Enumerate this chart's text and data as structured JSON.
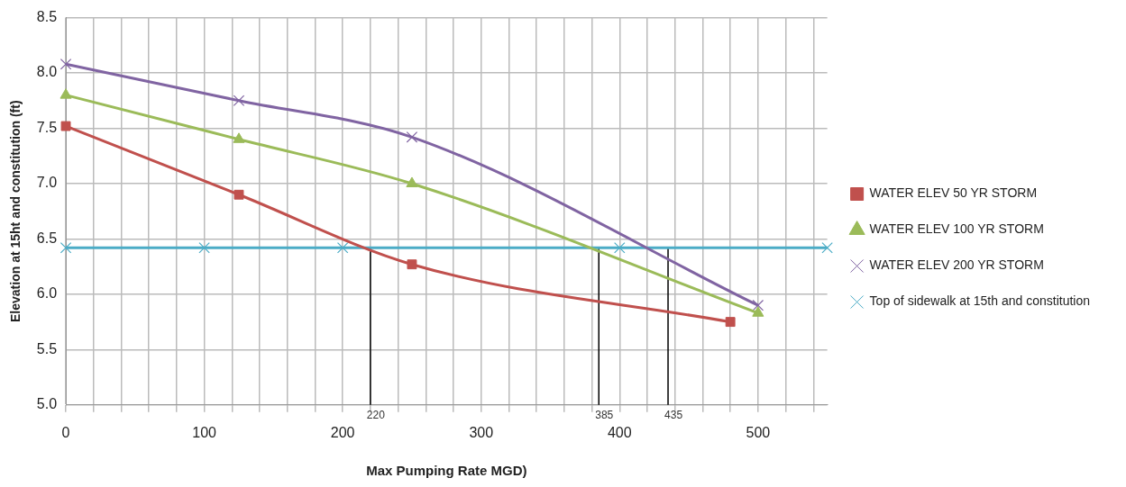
{
  "chart_data": {
    "type": "line",
    "xlabel": "Max Pumping Rate MGD)",
    "ylabel": "Elevation at 15ht and constitution (ft)",
    "xlim": [
      0,
      550
    ],
    "xticks": [
      0,
      {
        "value": 20,
        "label": null
      },
      {
        "value": 40,
        "label": null
      },
      {
        "value": 60,
        "label": null
      },
      {
        "value": 80,
        "label": null
      },
      100,
      {
        "value": 120,
        "label": null
      },
      {
        "value": 140,
        "label": null
      },
      {
        "value": 160,
        "label": null
      },
      {
        "value": 180,
        "label": null
      },
      200,
      {
        "value": 220,
        "label": null
      },
      {
        "value": 240,
        "label": null
      },
      {
        "value": 260,
        "label": null
      },
      {
        "value": 280,
        "label": null
      },
      300,
      {
        "value": 320,
        "label": null
      },
      {
        "value": 340,
        "label": null
      },
      {
        "value": 360,
        "label": null
      },
      {
        "value": 380,
        "label": null
      },
      400,
      {
        "value": 420,
        "label": null
      },
      {
        "value": 440,
        "label": null
      },
      {
        "value": 460,
        "label": null
      },
      {
        "value": 480,
        "label": null
      },
      500,
      {
        "value": 520,
        "label": null
      },
      {
        "value": 540,
        "label": null
      }
    ],
    "ylim": [
      5.0,
      8.5
    ],
    "yticks": [
      {
        "value": 5,
        "label": "5.0"
      },
      {
        "value": 5.5,
        "label": "5.5"
      },
      {
        "value": 6,
        "label": "6.0"
      },
      {
        "value": 6.5,
        "label": "6.5"
      },
      {
        "value": 7,
        "label": "7.0"
      },
      {
        "value": 7.5,
        "label": "7.5"
      },
      {
        "value": 8,
        "label": "8.0"
      },
      {
        "value": 8.5,
        "label": "8.5"
      }
    ],
    "grid": true,
    "legend": "right",
    "series": [
      {
        "name": "WATER ELEV 50 YR STORM",
        "color": "#c0504d",
        "marker": "square",
        "x": [
          0,
          125,
          250,
          480
        ],
        "values": [
          7.52,
          6.9,
          6.27,
          5.75
        ]
      },
      {
        "name": "WATER ELEV 100 YR STORM",
        "color": "#9bbb59",
        "marker": "triangle",
        "x": [
          0,
          125,
          250,
          500
        ],
        "values": [
          7.8,
          7.4,
          7.0,
          5.83
        ]
      },
      {
        "name": "WATER ELEV 200 YR STORM",
        "color": "#8064a2",
        "marker": "cross",
        "x": [
          0,
          125,
          250,
          500
        ],
        "values": [
          8.08,
          7.75,
          7.42,
          5.9
        ]
      },
      {
        "name": "Top of sidewalk at 15th and constitution",
        "color": "#4bacc6",
        "marker": "cross",
        "x": [
          0,
          100,
          200,
          400,
          550
        ],
        "values": [
          6.42,
          6.42,
          6.42,
          6.42,
          6.42
        ]
      },
      {
        "color": "#000000",
        "marker": "none",
        "x": [
          220,
          220
        ],
        "values": [
          5.0,
          6.42
        ]
      },
      {
        "color": "#000000",
        "marker": "none",
        "x": [
          385,
          385
        ],
        "values": [
          5.0,
          6.42
        ]
      },
      {
        "color": "#000000",
        "marker": "none",
        "x": [
          435,
          435
        ],
        "values": [
          5.0,
          6.42
        ]
      }
    ],
    "annotations": [
      {
        "text": "220",
        "x": 220,
        "y": 5.0
      },
      {
        "text": "385",
        "x": 385,
        "y": 5.0
      },
      {
        "text": "435",
        "x": 435,
        "y": 5.0
      }
    ]
  }
}
